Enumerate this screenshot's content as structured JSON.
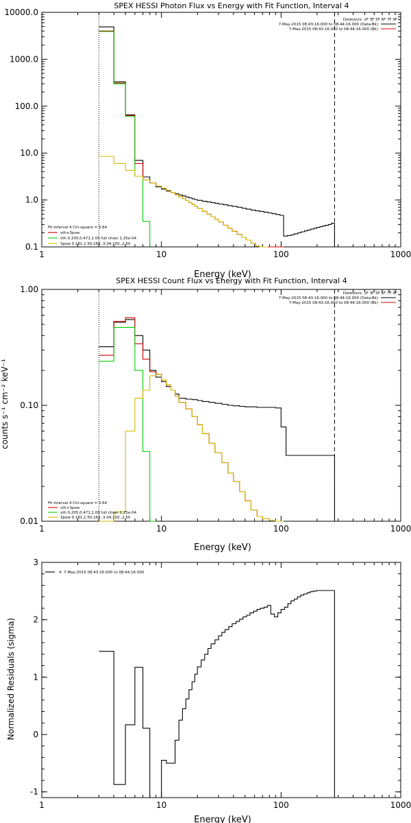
{
  "x_ticks": [
    {
      "v": 1,
      "label": "1"
    },
    {
      "v": 10,
      "label": "10"
    },
    {
      "v": 100,
      "label": "100"
    },
    {
      "v": 1000,
      "label": "1000"
    }
  ],
  "chart_data": [
    {
      "type": "line",
      "title": "SPEX HESSI Photon Flux vs Energy with Fit Function, Interval 4",
      "xlabel": "Energy (keV)",
      "ylabel": "",
      "x_scale": "log",
      "y_scale": "log",
      "xlim": [
        1,
        1000
      ],
      "ylim": [
        0.1,
        10000
      ],
      "y_ticks": [
        {
          "v": 0.1,
          "label": "0.1"
        },
        {
          "v": 1,
          "label": "1.0"
        },
        {
          "v": 10,
          "label": "10.0"
        },
        {
          "v": 100,
          "label": "100.0"
        },
        {
          "v": 1000,
          "label": "1000.0"
        },
        {
          "v": 10000,
          "label": "10000.0"
        }
      ],
      "grid": false,
      "detectors": "Detectors: 1F 3F 5F 6F 7F 9F",
      "top_legend": [
        {
          "text": "7-May-2015 08:43:16.000 to 08:44:16.000 (Data-Bk)",
          "color": "#000000"
        },
        {
          "text": "7-May-2015 08:43:16.000 to 08:44:16.000 (Bk)",
          "color": "#d00000"
        }
      ],
      "fit_info": "Fit Interval 4   Chi-square = 3.64",
      "legend": [
        {
          "text": "vth+3pow",
          "color": "#d00000"
        },
        {
          "text": "vth 0.205,0.471,1.00  full chian 1.25e-04",
          "color": "#00cc00"
        },
        {
          "text": "3pow 0.181,1.50,169.,3.04,150.,2.50",
          "color": "#d4b800"
        }
      ],
      "vlines": [
        {
          "x": 3.0,
          "style": "dotted"
        },
        {
          "x": 280,
          "style": "dashed"
        }
      ],
      "series": [
        {
          "color": "#000000",
          "edges": [
            3.0,
            4.0,
            5.0,
            6.0,
            7.0,
            8.0,
            9.0,
            10.0,
            11.0,
            12.0,
            13.0,
            14.0,
            15.0,
            16.0,
            17.0,
            18.0,
            19.0,
            20.0,
            22.0,
            24.0,
            26.0,
            28.0,
            30.0,
            33.0,
            36.0,
            39.0,
            43.0,
            47.0,
            51.0,
            56.0,
            61.0,
            66.0,
            72.0,
            78.0,
            84.0,
            91.0,
            98.0,
            105.0,
            113.0,
            121.0,
            129.0,
            138.0,
            147.0,
            157.0,
            167.0,
            177.0,
            188.0,
            199.0,
            211.0,
            223.0,
            236.0,
            249.0,
            263.0,
            280.0
          ],
          "values": [
            4900,
            330,
            65,
            7.0,
            3.1,
            2.3,
            1.9,
            1.7,
            1.55,
            1.45,
            1.35,
            1.28,
            1.22,
            1.16,
            1.11,
            1.06,
            1.02,
            0.98,
            0.94,
            0.91,
            0.88,
            0.85,
            0.82,
            0.79,
            0.76,
            0.73,
            0.7,
            0.67,
            0.64,
            0.61,
            0.59,
            0.57,
            0.55,
            0.53,
            0.51,
            0.49,
            0.47,
            0.17,
            0.175,
            0.18,
            0.19,
            0.2,
            0.21,
            0.22,
            0.23,
            0.24,
            0.25,
            0.26,
            0.27,
            0.28,
            0.29,
            0.3,
            0.32
          ]
        },
        {
          "color": "#d00000",
          "edges": [
            3.0,
            4.0,
            5.0,
            6.0,
            7.0,
            8.0,
            9.0,
            10.0,
            11.0,
            12.0,
            13.0,
            14.0,
            15.0,
            16.0,
            17.0,
            18.0,
            19.0,
            20.0,
            22.0,
            24.0,
            26.0,
            28.0,
            30.0,
            33.0,
            36.0,
            39.0,
            43.0,
            47.0,
            51.0,
            56.0,
            61.0,
            66.0,
            72.0,
            78.0,
            84.0,
            91.0,
            98.0,
            105.0
          ],
          "values": [
            4000,
            310,
            63,
            6.0,
            2.7,
            2.3,
            2.0,
            1.8,
            1.6,
            1.45,
            1.3,
            1.18,
            1.07,
            0.97,
            0.88,
            0.8,
            0.73,
            0.66,
            0.57,
            0.5,
            0.44,
            0.39,
            0.34,
            0.29,
            0.25,
            0.215,
            0.185,
            0.16,
            0.14,
            0.12,
            0.105,
            0.1,
            0.1,
            0.1,
            0.1,
            0.1,
            0.1
          ]
        },
        {
          "color": "#00cc00",
          "edges": [
            3.0,
            4.0,
            5.0,
            6.0,
            7.0,
            8.0
          ],
          "values": [
            3900,
            300,
            60,
            3.2,
            0.35
          ]
        },
        {
          "color": "#d4b800",
          "edges": [
            3.0,
            4.0,
            5.0,
            6.0,
            7.0,
            8.0,
            9.0,
            10.0,
            11.0,
            12.0,
            13.0,
            14.0,
            15.0,
            16.0,
            17.0,
            18.0,
            19.0,
            20.0,
            22.0,
            24.0,
            26.0,
            28.0,
            30.0,
            33.0,
            36.0,
            39.0,
            43.0,
            47.0,
            51.0,
            56.0,
            61.0,
            66.0,
            72.0,
            78.0
          ],
          "values": [
            8.5,
            6.0,
            4.3,
            3.2,
            2.7,
            2.3,
            2.0,
            1.8,
            1.6,
            1.45,
            1.3,
            1.18,
            1.07,
            0.97,
            0.88,
            0.8,
            0.73,
            0.66,
            0.57,
            0.5,
            0.44,
            0.39,
            0.34,
            0.29,
            0.25,
            0.215,
            0.185,
            0.16,
            0.14,
            0.12,
            0.105,
            0.1,
            0.1
          ]
        }
      ]
    },
    {
      "type": "line",
      "title": "SPEX HESSI Count Flux vs Energy with Fit Function, Interval 4",
      "xlabel": "Energy (keV)",
      "ylabel": "counts s⁻¹ cm⁻² keV⁻¹",
      "x_scale": "log",
      "y_scale": "log",
      "xlim": [
        1,
        1000
      ],
      "ylim": [
        0.01,
        1.0
      ],
      "y_ticks": [
        {
          "v": 0.01,
          "label": "0.01"
        },
        {
          "v": 0.1,
          "label": "0.10"
        },
        {
          "v": 1,
          "label": "1.00"
        }
      ],
      "grid": false,
      "detectors": "Detectors: 1F 3F 5F 6F 7F 9F",
      "top_legend": [
        {
          "text": "7-May-2015 08:43:16.000 to 08:44:16.000 (Data-Bk)",
          "color": "#000000"
        },
        {
          "text": "7-May-2015 08:43:16.000 to 08:44:16.000 (Bk)",
          "color": "#d00000"
        }
      ],
      "fit_info": "Fit Interval 4   Chi-square = 3.64",
      "legend": [
        {
          "text": "vth+3pow",
          "color": "#d00000"
        },
        {
          "text": "vth 0.205,0.471,1.00  full chian 1.25e-04",
          "color": "#00cc00"
        },
        {
          "text": "3pow 0.181,1.50,169.,3.04,150.,2.50",
          "color": "#d4b800"
        }
      ],
      "vlines": [
        {
          "x": 3.0,
          "style": "dotted"
        },
        {
          "x": 280,
          "style": "dashed"
        }
      ],
      "series": [
        {
          "color": "#000000",
          "edges": [
            3.0,
            4.0,
            5.0,
            6.0,
            7.0,
            8.0,
            9.0,
            10.0,
            11.0,
            12.0,
            13.0,
            14.0,
            16.0,
            18.0,
            20.0,
            22.0,
            25.0,
            28.0,
            32.0,
            36.0,
            40.0,
            45.0,
            50.0,
            56.0,
            63.0,
            70.0,
            80.0,
            90.0,
            100.0,
            110.0,
            280.0
          ],
          "values": [
            0.32,
            0.52,
            0.55,
            0.4,
            0.3,
            0.2,
            0.175,
            0.16,
            0.145,
            0.135,
            0.125,
            0.115,
            0.113,
            0.112,
            0.11,
            0.108,
            0.106,
            0.104,
            0.102,
            0.1,
            0.099,
            0.098,
            0.097,
            0.097,
            0.096,
            0.096,
            0.096,
            0.095,
            0.065,
            0.037
          ]
        },
        {
          "color": "#d00000",
          "edges": [
            3.0,
            4.0,
            5.0,
            6.0,
            7.0,
            8.0,
            9.0,
            10.0,
            11.0,
            12.0,
            13.0,
            14.0,
            16.0,
            18.0,
            20.0,
            22.0,
            25.0,
            28.0,
            32.0,
            36.0,
            40.0,
            45.0,
            50.0,
            56.0,
            63.0,
            70.0,
            80.0,
            90.0,
            100.0,
            105.0
          ],
          "values": [
            0.27,
            0.53,
            0.57,
            0.34,
            0.25,
            0.195,
            0.185,
            0.165,
            0.15,
            0.135,
            0.12,
            0.106,
            0.093,
            0.08,
            0.068,
            0.057,
            0.047,
            0.039,
            0.032,
            0.026,
            0.022,
            0.018,
            0.015,
            0.0125,
            0.011,
            0.0105,
            0.0102,
            0.01,
            0.01
          ]
        },
        {
          "color": "#00cc00",
          "edges": [
            3.0,
            4.0,
            5.0,
            6.0,
            7.0,
            8.0,
            9.0
          ],
          "values": [
            0.24,
            0.47,
            0.47,
            0.2,
            0.04,
            0.01
          ]
        },
        {
          "color": "#d4b800",
          "edges": [
            3.0,
            4.0,
            5.0,
            6.0,
            7.0,
            8.0,
            9.0,
            10.0,
            11.0,
            12.0,
            13.0,
            14.0,
            16.0,
            18.0,
            20.0,
            22.0,
            25.0,
            28.0,
            32.0,
            36.0,
            40.0,
            45.0,
            50.0,
            56.0,
            63.0,
            70.0,
            80.0,
            90.0,
            100.0,
            105.0
          ],
          "values": [
            0.01,
            0.012,
            0.06,
            0.115,
            0.135,
            0.18,
            0.185,
            0.165,
            0.15,
            0.135,
            0.12,
            0.106,
            0.093,
            0.08,
            0.068,
            0.057,
            0.047,
            0.039,
            0.032,
            0.026,
            0.022,
            0.018,
            0.015,
            0.0125,
            0.011,
            0.0105,
            0.0102,
            0.01,
            0.01
          ]
        }
      ]
    },
    {
      "type": "line",
      "title": "",
      "xlabel": "Energy (keV)",
      "ylabel": "Normalized Residuals (sigma)",
      "x_scale": "log",
      "y_scale": "linear",
      "xlim": [
        1,
        1000
      ],
      "ylim": [
        -1.1,
        3.0
      ],
      "y_ticks": [
        {
          "v": -1,
          "label": "-1"
        },
        {
          "v": 0,
          "label": "0"
        },
        {
          "v": 1,
          "label": "1"
        },
        {
          "v": 2,
          "label": "2"
        },
        {
          "v": 3,
          "label": "3"
        }
      ],
      "grid": false,
      "legend": [
        {
          "text": "4.  7-May-2015 08:43:16.000 to 08:44:16.000",
          "color": "#000000"
        }
      ],
      "vlines": [],
      "series": [
        {
          "color": "#000000",
          "edges": [
            3.0,
            4.0,
            5.0,
            6.0,
            7.0,
            8.0,
            9.0,
            10.0,
            11.0,
            12.0,
            13.0,
            14.0,
            15.0,
            16.0,
            17.0,
            18.0,
            19.0,
            20.0,
            21.5,
            23.0,
            24.5,
            26.0,
            28.0,
            30.0,
            32.0,
            34.0,
            36.5,
            39.0,
            42.0,
            45.0,
            48.0,
            51.5,
            55.0,
            59.0,
            63.0,
            67.0,
            72.0,
            77.0,
            82.0,
            88.0,
            94.0,
            100.0,
            107.0,
            114.0,
            121.0,
            129.0,
            137.0,
            146.0,
            155.0,
            165.0,
            175.0,
            186.0,
            198.0,
            211.0,
            225.0,
            240.0,
            280.0
          ],
          "values": [
            1.45,
            -0.87,
            0.17,
            1.17,
            0.11,
            -1.12,
            -1.1,
            -0.45,
            -0.5,
            -0.5,
            -0.1,
            0.25,
            0.45,
            0.62,
            0.78,
            0.92,
            1.05,
            1.18,
            1.3,
            1.4,
            1.5,
            1.58,
            1.65,
            1.72,
            1.78,
            1.83,
            1.88,
            1.93,
            1.97,
            2.01,
            2.05,
            2.08,
            2.12,
            2.15,
            2.18,
            2.2,
            2.22,
            2.25,
            2.1,
            2.05,
            2.12,
            2.18,
            2.22,
            2.28,
            2.33,
            2.36,
            2.4,
            2.43,
            2.45,
            2.47,
            2.49,
            2.5,
            2.51,
            2.51,
            2.51,
            2.51
          ]
        }
      ]
    }
  ]
}
